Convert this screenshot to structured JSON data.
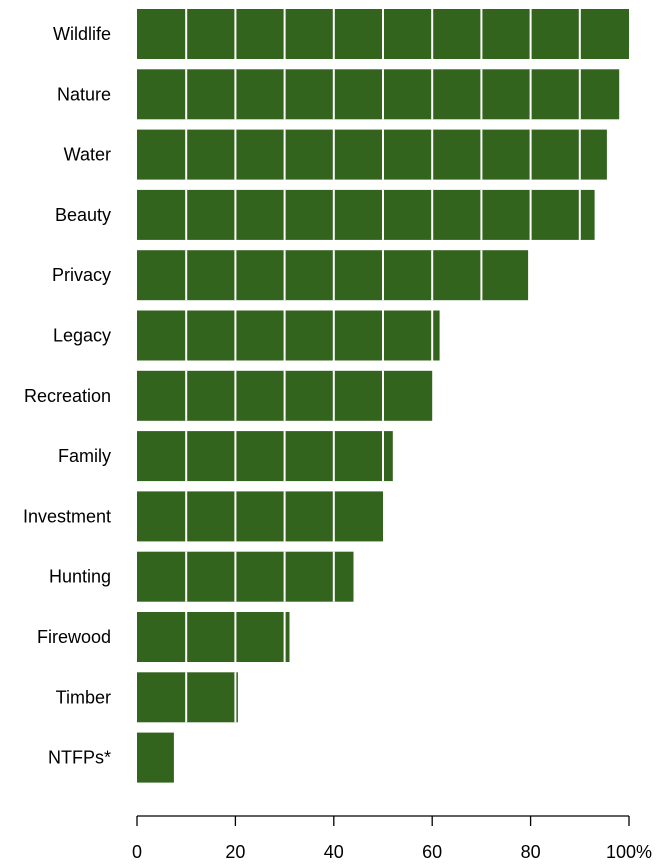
{
  "chart_data": {
    "type": "bar",
    "orientation": "horizontal",
    "categories": [
      "Wildlife",
      "Nature",
      "Water",
      "Beauty",
      "Privacy",
      "Legacy",
      "Recreation",
      "Family",
      "Investment",
      "Hunting",
      "Firewood",
      "Timber",
      "NTFPs*"
    ],
    "values": [
      100,
      98,
      95.5,
      93,
      79.5,
      61.5,
      60,
      52,
      50,
      44,
      31,
      20.5,
      7.5
    ],
    "xlim": [
      0,
      100
    ],
    "x_ticks": [
      0,
      20,
      40,
      60,
      80,
      100
    ],
    "x_tick_labels": [
      "0",
      "20",
      "40",
      "60",
      "80",
      "100%"
    ],
    "bar_color": "#33641e",
    "gridline_color": "#ffffff",
    "gridline_step": 10,
    "grid": "white vertical lines every 10 units drawn over bars",
    "title": "",
    "xlabel": "",
    "ylabel": ""
  }
}
